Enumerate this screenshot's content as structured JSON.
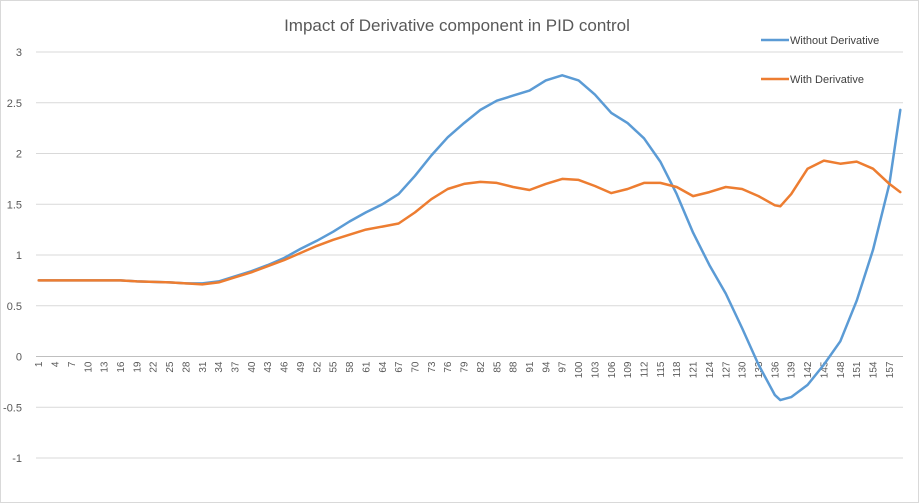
{
  "chart_data": {
    "type": "line",
    "title": "Impact of Derivative component in PID control",
    "xlabel": "",
    "ylabel": "",
    "ylim": [
      -1,
      3
    ],
    "yticks": [
      "3",
      "2.5",
      "2",
      "1.5",
      "1",
      "0.5",
      "0",
      "-0.5",
      "-1"
    ],
    "grid": true,
    "legend_position": "top-right",
    "x_range": [
      1,
      159
    ],
    "x_tick_labels": [
      "1",
      "4",
      "7",
      "10",
      "13",
      "16",
      "19",
      "22",
      "25",
      "28",
      "31",
      "34",
      "37",
      "40",
      "43",
      "46",
      "49",
      "52",
      "55",
      "58",
      "61",
      "64",
      "67",
      "70",
      "73",
      "76",
      "79",
      "82",
      "85",
      "88",
      "91",
      "94",
      "97",
      "100",
      "103",
      "106",
      "109",
      "112",
      "115",
      "118",
      "121",
      "124",
      "127",
      "130",
      "133",
      "136",
      "139",
      "142",
      "145",
      "148",
      "151",
      "154",
      "157"
    ],
    "series": [
      {
        "name": "Without Derivative",
        "color": "#5b9bd5",
        "x": [
          1,
          10,
          16,
          19,
          25,
          28,
          31,
          34,
          37,
          40,
          43,
          46,
          49,
          52,
          55,
          58,
          61,
          64,
          67,
          70,
          73,
          76,
          79,
          82,
          85,
          88,
          91,
          94,
          97,
          100,
          103,
          106,
          109,
          112,
          115,
          118,
          121,
          124,
          127,
          130,
          133,
          136,
          137,
          139,
          142,
          145,
          148,
          151,
          154,
          157,
          159
        ],
        "values": [
          0.75,
          0.75,
          0.75,
          0.74,
          0.73,
          0.72,
          0.72,
          0.74,
          0.79,
          0.84,
          0.9,
          0.97,
          1.06,
          1.14,
          1.23,
          1.33,
          1.42,
          1.5,
          1.6,
          1.78,
          1.98,
          2.16,
          2.3,
          2.43,
          2.52,
          2.57,
          2.62,
          2.72,
          2.77,
          2.72,
          2.58,
          2.4,
          2.3,
          2.15,
          1.92,
          1.6,
          1.22,
          0.9,
          0.62,
          0.28,
          -0.08,
          -0.38,
          -0.43,
          -0.4,
          -0.28,
          -0.08,
          0.15,
          0.55,
          1.05,
          1.7,
          2.43
        ]
      },
      {
        "name": "With Derivative",
        "color": "#ed7d31",
        "x": [
          1,
          10,
          16,
          19,
          25,
          28,
          31,
          34,
          37,
          40,
          43,
          46,
          49,
          52,
          55,
          58,
          61,
          64,
          67,
          70,
          73,
          76,
          79,
          82,
          85,
          88,
          91,
          94,
          97,
          100,
          103,
          106,
          109,
          112,
          115,
          118,
          121,
          124,
          127,
          130,
          133,
          136,
          137,
          139,
          142,
          145,
          148,
          151,
          154,
          157,
          159
        ],
        "values": [
          0.75,
          0.75,
          0.75,
          0.74,
          0.73,
          0.72,
          0.71,
          0.73,
          0.78,
          0.83,
          0.89,
          0.95,
          1.02,
          1.09,
          1.15,
          1.2,
          1.25,
          1.28,
          1.31,
          1.42,
          1.55,
          1.65,
          1.7,
          1.72,
          1.71,
          1.67,
          1.64,
          1.7,
          1.75,
          1.74,
          1.68,
          1.61,
          1.65,
          1.71,
          1.71,
          1.67,
          1.58,
          1.62,
          1.67,
          1.65,
          1.58,
          1.49,
          1.48,
          1.6,
          1.85,
          1.93,
          1.9,
          1.92,
          1.85,
          1.7,
          1.62
        ]
      }
    ]
  }
}
